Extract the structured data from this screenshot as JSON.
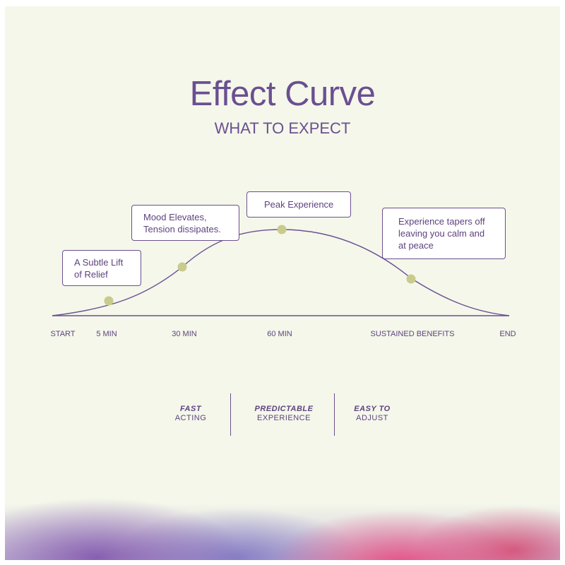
{
  "header": {
    "title": "Effect Curve",
    "subtitle": "WHAT TO EXPECT"
  },
  "callouts": {
    "subtle_lift": "A Subtle Lift of Relief",
    "mood_elevates": "Mood Elevates, Tension dissipates.",
    "peak": "Peak Experience",
    "tapers": "Experience tapers off leaving you calm and at peace"
  },
  "timeline": {
    "start": "START",
    "min5": "5 MIN",
    "min30": "30 MIN",
    "min60": "60 MIN",
    "sustained": "SUSTAINED BENEFITS",
    "end": "END"
  },
  "features": [
    {
      "bold": "FAST",
      "regular": "ACTING"
    },
    {
      "bold": "PREDICTABLE",
      "regular": "EXPERIENCE"
    },
    {
      "bold": "EASY TO",
      "regular": "ADJUST"
    }
  ],
  "colors": {
    "purple": "#6b4f91",
    "dot": "#c9cb8d",
    "background": "#f4f7ea"
  }
}
